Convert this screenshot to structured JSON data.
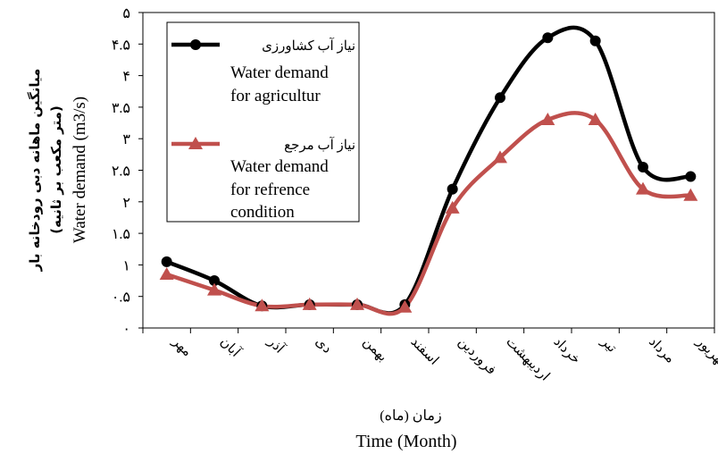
{
  "chart_data": {
    "type": "line",
    "categories": [
      "مهر",
      "آبان",
      "آذر",
      "دی",
      "بهمن",
      "اسفند",
      "فروردین",
      "اردیبهشت",
      "خرداد",
      "تیر",
      "مرداد",
      "شهریور"
    ],
    "series": [
      {
        "name": "نیاز آب کشاورزی",
        "name_en_1": "Water demand",
        "name_en_2": "for agricultur",
        "color": "#000000",
        "marker": "circle",
        "values": [
          1.05,
          0.75,
          0.35,
          0.37,
          0.37,
          0.37,
          2.2,
          3.65,
          4.6,
          4.55,
          2.55,
          2.4
        ]
      },
      {
        "name": "نیاز آب مرجع",
        "name_en_1": "Water demand",
        "name_en_2": "for refrence",
        "name_en_3": "condition",
        "color": "#c0504d",
        "marker": "triangle",
        "values": [
          0.85,
          0.6,
          0.35,
          0.37,
          0.37,
          0.33,
          1.9,
          2.7,
          3.3,
          3.3,
          2.2,
          2.1
        ]
      }
    ],
    "ylim": [
      0,
      5
    ],
    "yticks": [
      "۰",
      "۰.۵",
      "۱",
      "۱.۵",
      "۲",
      "۲.۵",
      "۳",
      "۳.۵",
      "۴",
      "۴.۵",
      "۵"
    ],
    "ylabel_fa_1": "میانگین ماهانه دبی رودخانه بار",
    "ylabel_fa_2": "(متر مکعب بر ثانیه)",
    "ylabel_en": "Water demand (m3/s)",
    "xlabel_fa": "زمان (ماه)",
    "xlabel_en": "Time (Month)",
    "legend_position": "top-left"
  }
}
